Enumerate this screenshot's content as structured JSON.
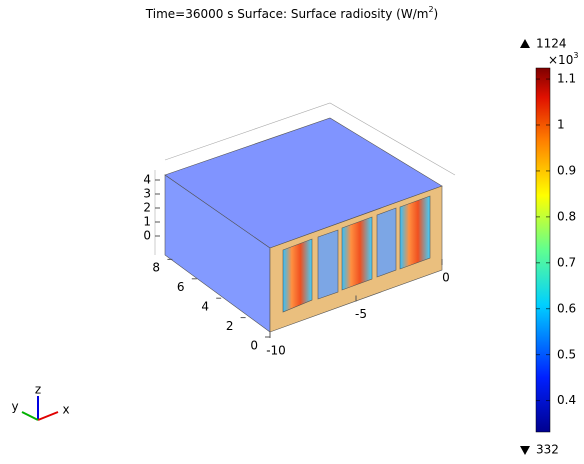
{
  "chart_data": {
    "type": "surface",
    "title": "Time=36000 s   Surface: Surface radiosity (W/m",
    "title_superscript": "2",
    "title_suffix": ")",
    "colorbar": {
      "max": 1124,
      "min": 332,
      "multiplier": "×10",
      "multiplier_exponent": "3",
      "lim": [
        0.332,
        1.124
      ],
      "ticks": [
        0.4,
        0.5,
        0.6,
        0.7,
        0.8,
        0.9,
        1,
        1.1
      ]
    },
    "xticks": [
      -10,
      -5,
      0
    ],
    "yticks": [
      0,
      2,
      4,
      6,
      8
    ],
    "zticks": [
      0,
      1,
      2,
      3,
      4
    ],
    "triad": {
      "x": "x",
      "y": "y",
      "z": "z"
    }
  }
}
